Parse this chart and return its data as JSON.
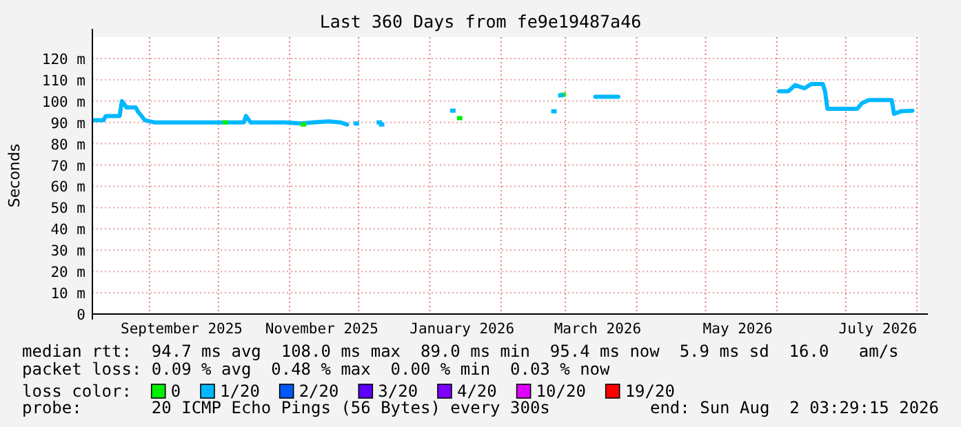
{
  "chart_data": {
    "type": "line",
    "title": "Last 360 Days from fe9e19487a46",
    "ylabel": "Seconds",
    "xlim": [
      "2025-08-07T03:29",
      "2026-08-02T03:29"
    ],
    "xticks": [
      {
        "value": "2025-09-01",
        "label": null
      },
      {
        "value": "2025-09-15",
        "label": "September 2025"
      },
      {
        "value": "2025-10-01",
        "label": null
      },
      {
        "value": "2025-11-01",
        "label": null
      },
      {
        "value": "2025-11-15",
        "label": "November 2025"
      },
      {
        "value": "2025-12-01",
        "label": null
      },
      {
        "value": "2026-01-01",
        "label": null
      },
      {
        "value": "2026-01-15",
        "label": "January 2026"
      },
      {
        "value": "2026-02-01",
        "label": null
      },
      {
        "value": "2026-03-01",
        "label": null
      },
      {
        "value": "2026-03-15",
        "label": "March 2026"
      },
      {
        "value": "2026-04-01",
        "label": null
      },
      {
        "value": "2026-05-01",
        "label": null
      },
      {
        "value": "2026-05-15",
        "label": "May 2026"
      },
      {
        "value": "2026-06-01",
        "label": null
      },
      {
        "value": "2026-07-01",
        "label": null
      },
      {
        "value": "2026-07-15",
        "label": "July 2026"
      },
      {
        "value": "2026-08-01",
        "label": null
      }
    ],
    "ylim": [
      0,
      130
    ],
    "yticks": [
      {
        "value": 0,
        "label": "0"
      },
      {
        "value": 10,
        "label": "10 m"
      },
      {
        "value": 20,
        "label": "20 m"
      },
      {
        "value": 30,
        "label": "30 m"
      },
      {
        "value": 40,
        "label": "40 m"
      },
      {
        "value": 50,
        "label": "50 m"
      },
      {
        "value": 60,
        "label": "60 m"
      },
      {
        "value": 70,
        "label": "70 m"
      },
      {
        "value": 80,
        "label": "80 m"
      },
      {
        "value": 90,
        "label": "90 m"
      },
      {
        "value": 100,
        "label": "100 m"
      },
      {
        "value": 110,
        "label": "110 m"
      },
      {
        "value": 120,
        "label": "120 m"
      }
    ],
    "grid": true,
    "legend": "bottom",
    "legend_title": "loss color:",
    "line_style": "solid",
    "series": [
      {
        "name": "0",
        "color": "#00ee00",
        "type": "scatter",
        "x": [
          "2025-10-04",
          "2025-11-07",
          "2026-01-14",
          "2026-02-28"
        ],
        "values": [
          90,
          89,
          92,
          103
        ]
      },
      {
        "color": "#00b8ff",
        "type": "scatter",
        "x": [
          "2025-11-30",
          "2025-12-10",
          "2025-12-11",
          "2026-01-11",
          "2026-02-24",
          "2026-02-27"
        ],
        "values": [
          89.5,
          90,
          89,
          95.5,
          95.2,
          102.7
        ]
      },
      {
        "name": "1/20",
        "color": "#00b8ff",
        "x": [
          "2025-08-08",
          "2025-08-12",
          "2025-08-13",
          "2025-08-19",
          "2025-08-20",
          "2025-08-22",
          "2025-08-26",
          "2025-08-27",
          "2025-08-30",
          "2025-09-03",
          "2025-10-03",
          "2025-10-12",
          "2025-10-13",
          "2025-10-15",
          "2025-10-30",
          "2025-11-06",
          "2025-11-11",
          "2025-11-18",
          "2025-11-23",
          "2025-11-26",
          "2025-11-28",
          "2026-03-14",
          "2026-03-24",
          "2026-04-15",
          "2026-06-02",
          "2026-06-06",
          "2026-06-09",
          "2026-06-13",
          "2026-06-16",
          "2026-06-21",
          "2026-06-22",
          "2026-06-23",
          "2026-07-06",
          "2026-07-08",
          "2026-07-11",
          "2026-07-21",
          "2026-07-22",
          "2026-07-25",
          "2026-07-30"
        ],
        "values": [
          91,
          91,
          93,
          93,
          100,
          97,
          97,
          95,
          91,
          90,
          90,
          90,
          93,
          90,
          90,
          89.5,
          90,
          90.5,
          90,
          89,
          null,
          102,
          102,
          null,
          104.6,
          104.6,
          107.5,
          106,
          108,
          108,
          104.6,
          96.4,
          96.4,
          99,
          100.5,
          100.5,
          94,
          95.2,
          95.5
        ]
      },
      {
        "name": "2/20",
        "color": "#0059ff"
      },
      {
        "name": "3/20",
        "color": "#5e00ff"
      },
      {
        "name": "4/20",
        "color": "#7e00ff"
      },
      {
        "name": "10/20",
        "color": "#dd00ff"
      },
      {
        "name": "19/20",
        "color": "#ff0000"
      }
    ],
    "annotations": [
      "median rtt:  94.7 ms avg  108.0 ms max  89.0 ms min  95.4 ms now  5.9 ms sd  16.0   am/s",
      "packet loss: 0.09 % avg  0.48 % max  0.00 % min  0.03 % now",
      "probe:       20 ICMP Echo Pings (56 Bytes) every 300s",
      "end: Sun Aug  2 03:29:15 2026"
    ]
  }
}
